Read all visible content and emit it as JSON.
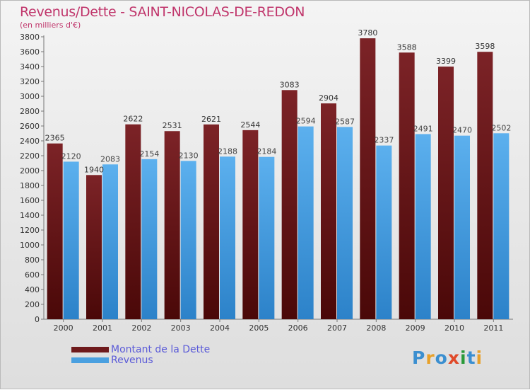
{
  "header": {
    "title": "Revenus/Dette - SAINT-NICOLAS-DE-REDON",
    "subtitle": "(en milliers d'€)"
  },
  "colors": {
    "dette": "#6e1a1c",
    "revenus": "#4aa0e0",
    "title": "#c0356b",
    "legend_text": "#5a5ad8"
  },
  "legend": {
    "items": [
      {
        "label": "Montant de la Dette",
        "color": "#6e1a1c"
      },
      {
        "label": "Revenus",
        "color": "#4aa0e0"
      }
    ]
  },
  "logo": {
    "text": "Proxiti",
    "letters": [
      {
        "ch": "P",
        "color": "#3b8fd0"
      },
      {
        "ch": "r",
        "color": "#e8a12a"
      },
      {
        "ch": "o",
        "color": "#3b8fd0"
      },
      {
        "ch": "x",
        "color": "#e04a2a"
      },
      {
        "ch": "i",
        "color": "#2a9a3a"
      },
      {
        "ch": "t",
        "color": "#3b8fd0"
      },
      {
        "ch": "i",
        "color": "#e8a12a"
      }
    ]
  },
  "chart_data": {
    "type": "bar",
    "title": "Revenus/Dette - SAINT-NICOLAS-DE-REDON",
    "subtitle": "(en milliers d'€)",
    "categories": [
      "2000",
      "2001",
      "2002",
      "2003",
      "2004",
      "2005",
      "2006",
      "2007",
      "2008",
      "2009",
      "2010",
      "2011"
    ],
    "series": [
      {
        "name": "Montant de la Dette",
        "values": [
          2365,
          1940,
          2622,
          2531,
          2621,
          2544,
          3083,
          2904,
          3780,
          3588,
          3399,
          3598
        ]
      },
      {
        "name": "Revenus",
        "values": [
          2120,
          2083,
          2154,
          2130,
          2188,
          2184,
          2594,
          2587,
          2337,
          2491,
          2470,
          2502
        ]
      }
    ],
    "ylim": [
      0,
      3800
    ],
    "ytick_step": 200,
    "grid": false,
    "legend_position": "bottom-left"
  }
}
